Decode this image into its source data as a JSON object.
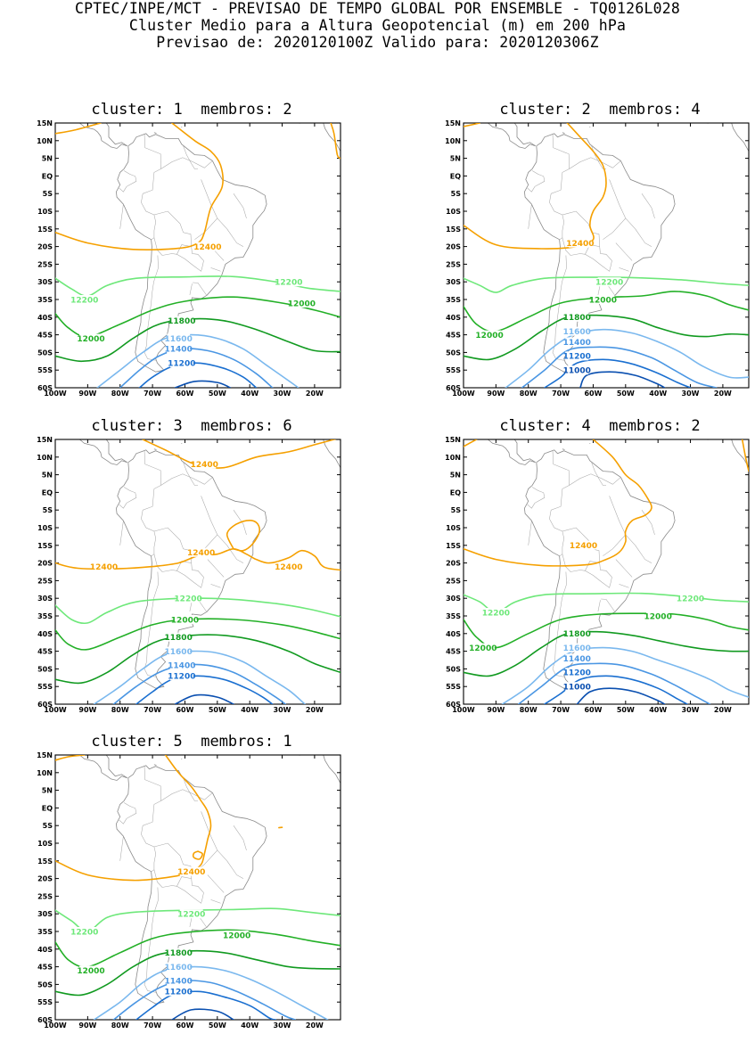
{
  "header": {
    "line1": "CPTEC/INPE/MCT - PREVISAO DE TEMPO GLOBAL POR ENSEMBLE - TQ0126L028",
    "line2": "Cluster Medio para a Altura Geopotencial (m) em 200 hPa",
    "line3": "Previsao de: 2020120100Z   Valido para: 2020120306Z"
  },
  "axes": {
    "lat_labels": [
      "15N",
      "10N",
      "5N",
      "EQ",
      "5S",
      "10S",
      "15S",
      "20S",
      "25S",
      "30S",
      "35S",
      "40S",
      "45S",
      "50S",
      "55S",
      "60S"
    ],
    "lon_labels": [
      "100W",
      "90W",
      "80W",
      "70W",
      "60W",
      "50W",
      "40W",
      "30W",
      "20W"
    ]
  },
  "contour_colors": {
    "12400": "#f5a000",
    "12200": "#6ee87a",
    "12000": "#23b027",
    "11800": "#119a20",
    "11600": "#7ab8ee",
    "11400": "#4a96e3",
    "11200": "#1a6fd0",
    "11000": "#0a4fb0"
  },
  "chart_data": [
    {
      "type": "map-contour",
      "title": "cluster: 1  membros: 2",
      "extent": {
        "lon": [
          -100,
          -12
        ],
        "lat": [
          -60,
          15
        ]
      },
      "levels": [
        "12400",
        "12200",
        "12000",
        "11800",
        "11600",
        "11400",
        "11200"
      ],
      "labels": [
        {
          "text": "12400",
          "lon": -53,
          "lat": -20
        },
        {
          "text": "12200",
          "lon": -28,
          "lat": -30
        },
        {
          "text": "12200",
          "lon": -91,
          "lat": -35
        },
        {
          "text": "12000",
          "lon": -24,
          "lat": -36
        },
        {
          "text": "12000",
          "lon": -89,
          "lat": -46
        },
        {
          "text": "11800",
          "lon": -61,
          "lat": -41
        },
        {
          "text": "11600",
          "lon": -62,
          "lat": -46
        },
        {
          "text": "11400",
          "lon": -62,
          "lat": -49
        },
        {
          "text": "11200",
          "lon": -61,
          "lat": -53
        }
      ]
    },
    {
      "type": "map-contour",
      "title": "cluster: 2  membros: 4",
      "extent": {
        "lon": [
          -100,
          -12
        ],
        "lat": [
          -60,
          15
        ]
      },
      "levels": [
        "12400",
        "12200",
        "12000",
        "11800",
        "11600",
        "11400",
        "11200",
        "11000"
      ],
      "labels": [
        {
          "text": "12400",
          "lon": -64,
          "lat": -19
        },
        {
          "text": "12200",
          "lon": -55,
          "lat": -30
        },
        {
          "text": "12000",
          "lon": -57,
          "lat": -35
        },
        {
          "text": "12000",
          "lon": -92,
          "lat": -45
        },
        {
          "text": "11800",
          "lon": -65,
          "lat": -40
        },
        {
          "text": "11600",
          "lon": -65,
          "lat": -44
        },
        {
          "text": "11400",
          "lon": -65,
          "lat": -47
        },
        {
          "text": "11200",
          "lon": -65,
          "lat": -51
        },
        {
          "text": "11000",
          "lon": -65,
          "lat": -55
        }
      ]
    },
    {
      "type": "map-contour",
      "title": "cluster: 3  membros: 6",
      "extent": {
        "lon": [
          -100,
          -12
        ],
        "lat": [
          -60,
          15
        ]
      },
      "levels": [
        "12400",
        "12200",
        "12000",
        "11800",
        "11600",
        "11400",
        "11200"
      ],
      "labels": [
        {
          "text": "12400",
          "lon": -54,
          "lat": 8
        },
        {
          "text": "12400",
          "lon": -55,
          "lat": -17
        },
        {
          "text": "12400",
          "lon": -85,
          "lat": -21
        },
        {
          "text": "12400",
          "lon": -28,
          "lat": -21
        },
        {
          "text": "12200",
          "lon": -59,
          "lat": -30
        },
        {
          "text": "12000",
          "lon": -60,
          "lat": -36
        },
        {
          "text": "11800",
          "lon": -62,
          "lat": -41
        },
        {
          "text": "11600",
          "lon": -62,
          "lat": -45
        },
        {
          "text": "11400",
          "lon": -61,
          "lat": -49
        },
        {
          "text": "11200",
          "lon": -61,
          "lat": -52
        }
      ]
    },
    {
      "type": "map-contour",
      "title": "cluster: 4  membros: 2",
      "extent": {
        "lon": [
          -100,
          -12
        ],
        "lat": [
          -60,
          15
        ]
      },
      "levels": [
        "12400",
        "12200",
        "12000",
        "11800",
        "11600",
        "11400",
        "11200",
        "11000"
      ],
      "labels": [
        {
          "text": "12400",
          "lon": -63,
          "lat": -15
        },
        {
          "text": "12200",
          "lon": -30,
          "lat": -30
        },
        {
          "text": "12200",
          "lon": -90,
          "lat": -34
        },
        {
          "text": "12000",
          "lon": -40,
          "lat": -35
        },
        {
          "text": "12000",
          "lon": -94,
          "lat": -44
        },
        {
          "text": "11800",
          "lon": -65,
          "lat": -40
        },
        {
          "text": "11600",
          "lon": -65,
          "lat": -44
        },
        {
          "text": "11400",
          "lon": -65,
          "lat": -47
        },
        {
          "text": "11200",
          "lon": -65,
          "lat": -51
        },
        {
          "text": "11000",
          "lon": -65,
          "lat": -55
        }
      ]
    },
    {
      "type": "map-contour",
      "title": "cluster: 5  membros: 1",
      "extent": {
        "lon": [
          -100,
          -12
        ],
        "lat": [
          -60,
          15
        ]
      },
      "levels": [
        "12400",
        "12200",
        "12000",
        "11800",
        "11600",
        "11400",
        "11200"
      ],
      "labels": [
        {
          "text": "12400",
          "lon": -58,
          "lat": -18
        },
        {
          "text": "12200",
          "lon": -58,
          "lat": -30
        },
        {
          "text": "12200",
          "lon": -91,
          "lat": -35
        },
        {
          "text": "12000",
          "lon": -44,
          "lat": -36
        },
        {
          "text": "12000",
          "lon": -89,
          "lat": -46
        },
        {
          "text": "11800",
          "lon": -62,
          "lat": -41
        },
        {
          "text": "11600",
          "lon": -62,
          "lat": -45
        },
        {
          "text": "11400",
          "lon": -62,
          "lat": -49
        },
        {
          "text": "11200",
          "lon": -62,
          "lat": -52
        }
      ]
    }
  ]
}
